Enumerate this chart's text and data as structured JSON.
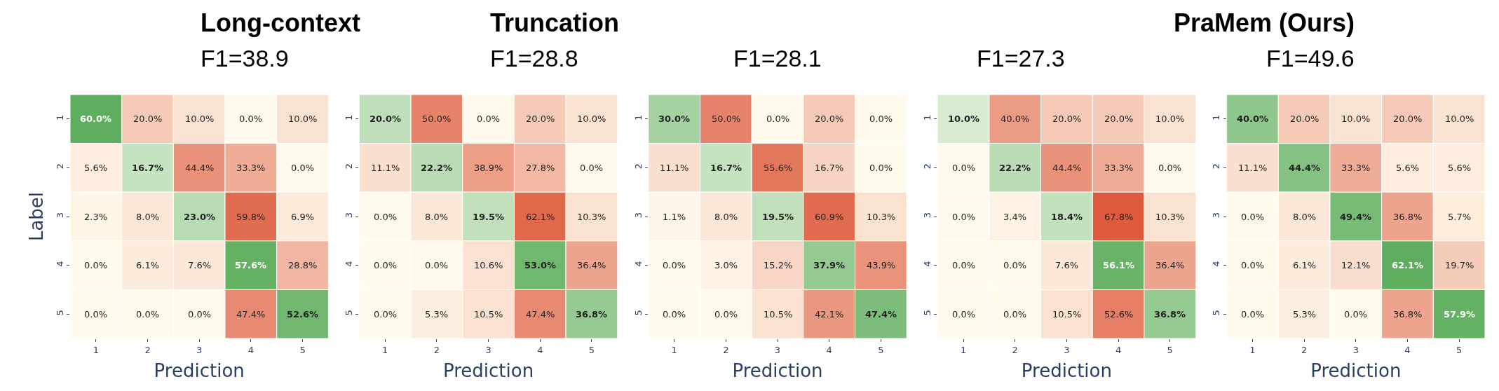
{
  "chart_data": [
    {
      "type": "heatmap",
      "title": "Long-context",
      "subtitle": "F1=38.9",
      "xlabel": "Prediction",
      "ylabel": "Label",
      "categories": [
        "1",
        "2",
        "3",
        "4",
        "5"
      ],
      "y_categories": [
        "1",
        "2",
        "3",
        "4",
        "5"
      ],
      "cells": [
        [
          60.0,
          20.0,
          10.0,
          0.0,
          10.0
        ],
        [
          5.6,
          16.7,
          44.4,
          33.3,
          0.0
        ],
        [
          2.3,
          8.0,
          23.0,
          59.8,
          6.9
        ],
        [
          0.0,
          6.1,
          7.6,
          57.6,
          28.8
        ],
        [
          0.0,
          0.0,
          0.0,
          47.4,
          52.6
        ]
      ],
      "cell_labels": [
        [
          "60.0%",
          "20.0%",
          "10.0%",
          "0.0%",
          "10.0%"
        ],
        [
          "5.6%",
          "16.7%",
          "44.4%",
          "33.3%",
          "0.0%"
        ],
        [
          "2.3%",
          "8.0%",
          "23.0%",
          "59.8%",
          "6.9%"
        ],
        [
          "0.0%",
          "6.1%",
          "7.6%",
          "57.6%",
          "28.8%"
        ],
        [
          "0.0%",
          "0.0%",
          "0.0%",
          "47.4%",
          "52.6%"
        ]
      ]
    },
    {
      "type": "heatmap",
      "title": "Truncation",
      "subtitle": "F1=28.8",
      "xlabel": "Prediction",
      "categories": [
        "1",
        "2",
        "3",
        "4",
        "5"
      ],
      "y_categories": [
        "1",
        "2",
        "3",
        "4",
        "5"
      ],
      "cells": [
        [
          20.0,
          50.0,
          0.0,
          20.0,
          10.0
        ],
        [
          11.1,
          22.2,
          38.9,
          27.8,
          0.0
        ],
        [
          0.0,
          8.0,
          19.5,
          62.1,
          10.3
        ],
        [
          0.0,
          0.0,
          10.6,
          53.0,
          36.4
        ],
        [
          0.0,
          5.3,
          10.5,
          47.4,
          36.8
        ]
      ],
      "cell_labels": [
        [
          "20.0%",
          "50.0%",
          "0.0%",
          "20.0%",
          "10.0%"
        ],
        [
          "11.1%",
          "22.2%",
          "38.9%",
          "27.8%",
          "0.0%"
        ],
        [
          "0.0%",
          "8.0%",
          "19.5%",
          "62.1%",
          "10.3%"
        ],
        [
          "0.0%",
          "0.0%",
          "10.6%",
          "53.0%",
          "36.4%"
        ],
        [
          "0.0%",
          "5.3%",
          "10.5%",
          "47.4%",
          "36.8%"
        ]
      ]
    },
    {
      "type": "heatmap",
      "subtitle": "F1=28.1",
      "xlabel": "Prediction",
      "categories": [
        "1",
        "2",
        "3",
        "4",
        "5"
      ],
      "y_categories": [
        "1",
        "2",
        "3",
        "4",
        "5"
      ],
      "cells": [
        [
          30.0,
          50.0,
          0.0,
          20.0,
          0.0
        ],
        [
          11.1,
          16.7,
          55.6,
          16.7,
          0.0
        ],
        [
          1.1,
          8.0,
          19.5,
          60.9,
          10.3
        ],
        [
          0.0,
          3.0,
          15.2,
          37.9,
          43.9
        ],
        [
          0.0,
          0.0,
          10.5,
          42.1,
          47.4
        ]
      ],
      "cell_labels": [
        [
          "30.0%",
          "50.0%",
          "0.0%",
          "20.0%",
          "0.0%"
        ],
        [
          "11.1%",
          "16.7%",
          "55.6%",
          "16.7%",
          "0.0%"
        ],
        [
          "1.1%",
          "8.0%",
          "19.5%",
          "60.9%",
          "10.3%"
        ],
        [
          "0.0%",
          "3.0%",
          "15.2%",
          "37.9%",
          "43.9%"
        ],
        [
          "0.0%",
          "0.0%",
          "10.5%",
          "42.1%",
          "47.4%"
        ]
      ]
    },
    {
      "type": "heatmap",
      "subtitle": "F1=27.3",
      "xlabel": "Prediction",
      "categories": [
        "1",
        "2",
        "3",
        "4",
        "5"
      ],
      "y_categories": [
        "1",
        "2",
        "3",
        "4",
        "5"
      ],
      "cells": [
        [
          10.0,
          40.0,
          20.0,
          20.0,
          10.0
        ],
        [
          0.0,
          22.2,
          44.4,
          33.3,
          0.0
        ],
        [
          0.0,
          3.4,
          18.4,
          67.8,
          10.3
        ],
        [
          0.0,
          0.0,
          7.6,
          56.1,
          36.4
        ],
        [
          0.0,
          0.0,
          10.5,
          52.6,
          36.8
        ]
      ],
      "cell_labels": [
        [
          "10.0%",
          "40.0%",
          "20.0%",
          "20.0%",
          "10.0%"
        ],
        [
          "0.0%",
          "22.2%",
          "44.4%",
          "33.3%",
          "0.0%"
        ],
        [
          "0.0%",
          "3.4%",
          "18.4%",
          "67.8%",
          "10.3%"
        ],
        [
          "0.0%",
          "0.0%",
          "7.6%",
          "56.1%",
          "36.4%"
        ],
        [
          "0.0%",
          "0.0%",
          "10.5%",
          "52.6%",
          "36.8%"
        ]
      ]
    },
    {
      "type": "heatmap",
      "title": "PraMem (Ours)",
      "subtitle": "F1=49.6",
      "xlabel": "Prediction",
      "categories": [
        "1",
        "2",
        "3",
        "4",
        "5"
      ],
      "y_categories": [
        "1",
        "2",
        "3",
        "4",
        "5"
      ],
      "cells": [
        [
          40.0,
          20.0,
          10.0,
          20.0,
          10.0
        ],
        [
          11.1,
          44.4,
          33.3,
          5.6,
          5.6
        ],
        [
          0.0,
          8.0,
          49.4,
          36.8,
          5.7
        ],
        [
          0.0,
          6.1,
          12.1,
          62.1,
          19.7
        ],
        [
          0.0,
          5.3,
          0.0,
          36.8,
          57.9
        ]
      ],
      "cell_labels": [
        [
          "40.0%",
          "20.0%",
          "10.0%",
          "20.0%",
          "10.0%"
        ],
        [
          "11.1%",
          "44.4%",
          "33.3%",
          "5.6%",
          "5.6%"
        ],
        [
          "0.0%",
          "8.0%",
          "49.4%",
          "36.8%",
          "5.7%"
        ],
        [
          "0.0%",
          "6.1%",
          "12.1%",
          "62.1%",
          "19.7%"
        ],
        [
          "0.0%",
          "5.3%",
          "0.0%",
          "36.8%",
          "57.9%"
        ]
      ]
    }
  ]
}
